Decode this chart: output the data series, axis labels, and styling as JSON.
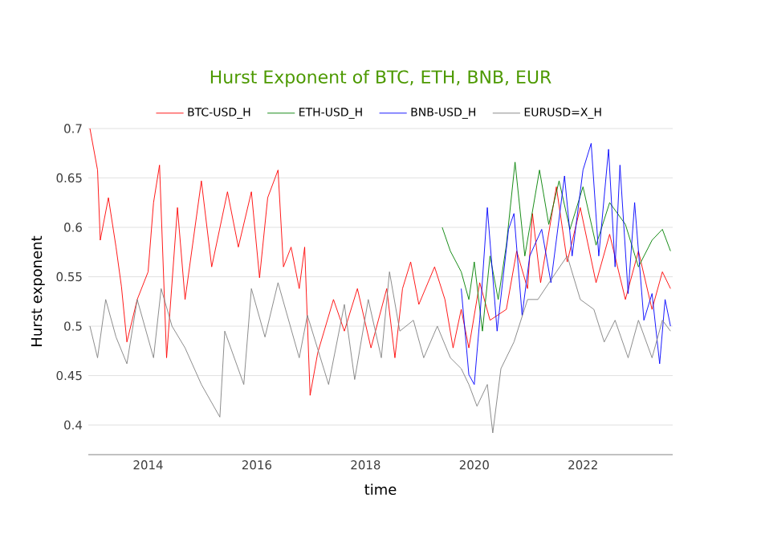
{
  "chart_data": {
    "type": "line",
    "title": "Hurst Exponent of BTC, ETH, BNB, EUR",
    "xlabel": "time",
    "ylabel": "Hurst exponent",
    "xlim": [
      2012.9,
      2023.65
    ],
    "ylim": [
      0.37,
      0.7
    ],
    "xticks": [
      2014,
      2016,
      2018,
      2020,
      2022
    ],
    "yticks": [
      0.4,
      0.45,
      0.5,
      0.55,
      0.6,
      0.65,
      0.7
    ],
    "grid": "y",
    "legend": "top",
    "marker": "none",
    "line_style": "solid",
    "series": [
      {
        "name": "BTC-USD_H",
        "color": "#ff0000",
        "x": [
          2012.93,
          2013.07,
          2013.12,
          2013.27,
          2013.41,
          2013.51,
          2013.61,
          2013.8,
          2014.0,
          2014.1,
          2014.21,
          2014.34,
          2014.54,
          2014.68,
          2014.98,
          2015.17,
          2015.46,
          2015.66,
          2015.9,
          2016.05,
          2016.2,
          2016.39,
          2016.49,
          2016.63,
          2016.78,
          2016.88,
          2016.98,
          2017.12,
          2017.41,
          2017.61,
          2017.85,
          2018.1,
          2018.39,
          2018.54,
          2018.68,
          2018.83,
          2018.98,
          2019.27,
          2019.46,
          2019.61,
          2019.76,
          2019.9,
          2020.1,
          2020.29,
          2020.59,
          2020.78,
          2020.98,
          2021.07,
          2021.22,
          2021.51,
          2021.71,
          2021.95,
          2022.24,
          2022.49,
          2022.78,
          2023.02,
          2023.27,
          2023.46,
          2023.61
        ],
        "values": [
          0.7,
          0.658,
          0.587,
          0.63,
          0.58,
          0.54,
          0.484,
          0.527,
          0.555,
          0.625,
          0.663,
          0.468,
          0.62,
          0.527,
          0.647,
          0.56,
          0.636,
          0.58,
          0.636,
          0.549,
          0.63,
          0.658,
          0.56,
          0.58,
          0.538,
          0.58,
          0.43,
          0.473,
          0.527,
          0.495,
          0.538,
          0.478,
          0.538,
          0.468,
          0.538,
          0.565,
          0.522,
          0.56,
          0.527,
          0.478,
          0.517,
          0.478,
          0.544,
          0.506,
          0.517,
          0.576,
          0.538,
          0.614,
          0.544,
          0.641,
          0.565,
          0.62,
          0.544,
          0.593,
          0.527,
          0.576,
          0.517,
          0.555,
          0.538
        ]
      },
      {
        "name": "ETH-USD_H",
        "color": "#008000",
        "x": [
          2019.41,
          2019.56,
          2019.76,
          2019.9,
          2020.0,
          2020.15,
          2020.29,
          2020.44,
          2020.59,
          2020.75,
          2020.93,
          2021.2,
          2021.37,
          2021.56,
          2021.76,
          2022.0,
          2022.24,
          2022.49,
          2022.78,
          2023.02,
          2023.27,
          2023.46,
          2023.61
        ],
        "values": [
          0.6,
          0.576,
          0.555,
          0.527,
          0.565,
          0.495,
          0.571,
          0.527,
          0.582,
          0.666,
          0.571,
          0.658,
          0.603,
          0.647,
          0.598,
          0.641,
          0.582,
          0.625,
          0.603,
          0.56,
          0.587,
          0.598,
          0.576
        ]
      },
      {
        "name": "BNB-USD_H",
        "color": "#0000ff",
        "x": [
          2019.76,
          2019.9,
          2020.0,
          2020.1,
          2020.24,
          2020.42,
          2020.63,
          2020.73,
          2020.88,
          2021.02,
          2021.24,
          2021.41,
          2021.66,
          2021.8,
          2022.0,
          2022.15,
          2022.29,
          2022.47,
          2022.59,
          2022.68,
          2022.83,
          2022.95,
          2023.12,
          2023.27,
          2023.41,
          2023.51,
          2023.61
        ],
        "values": [
          0.538,
          0.451,
          0.441,
          0.506,
          0.62,
          0.495,
          0.598,
          0.614,
          0.511,
          0.571,
          0.598,
          0.544,
          0.652,
          0.571,
          0.658,
          0.685,
          0.571,
          0.679,
          0.56,
          0.663,
          0.533,
          0.625,
          0.506,
          0.533,
          0.462,
          0.527,
          0.5
        ]
      },
      {
        "name": "EURUSD=X_H",
        "color": "#808080",
        "x": [
          2012.93,
          2013.07,
          2013.22,
          2013.41,
          2013.61,
          2013.8,
          2014.1,
          2014.24,
          2014.44,
          2014.68,
          2014.98,
          2015.32,
          2015.41,
          2015.76,
          2015.9,
          2016.15,
          2016.39,
          2016.78,
          2016.93,
          2017.32,
          2017.61,
          2017.8,
          2018.05,
          2018.29,
          2018.44,
          2018.63,
          2018.88,
          2019.07,
          2019.32,
          2019.56,
          2019.76,
          2019.9,
          2020.05,
          2020.24,
          2020.34,
          2020.49,
          2020.73,
          2020.98,
          2021.17,
          2021.51,
          2021.71,
          2021.95,
          2022.2,
          2022.39,
          2022.59,
          2022.83,
          2023.02,
          2023.27,
          2023.46,
          2023.61
        ],
        "values": [
          0.5,
          0.468,
          0.527,
          0.489,
          0.462,
          0.527,
          0.468,
          0.538,
          0.5,
          0.478,
          0.441,
          0.408,
          0.495,
          0.441,
          0.538,
          0.489,
          0.544,
          0.468,
          0.511,
          0.441,
          0.522,
          0.446,
          0.527,
          0.468,
          0.555,
          0.495,
          0.506,
          0.468,
          0.5,
          0.468,
          0.457,
          0.441,
          0.419,
          0.441,
          0.392,
          0.457,
          0.484,
          0.527,
          0.527,
          0.555,
          0.571,
          0.527,
          0.517,
          0.484,
          0.506,
          0.468,
          0.506,
          0.468,
          0.506,
          0.495
        ]
      }
    ]
  }
}
